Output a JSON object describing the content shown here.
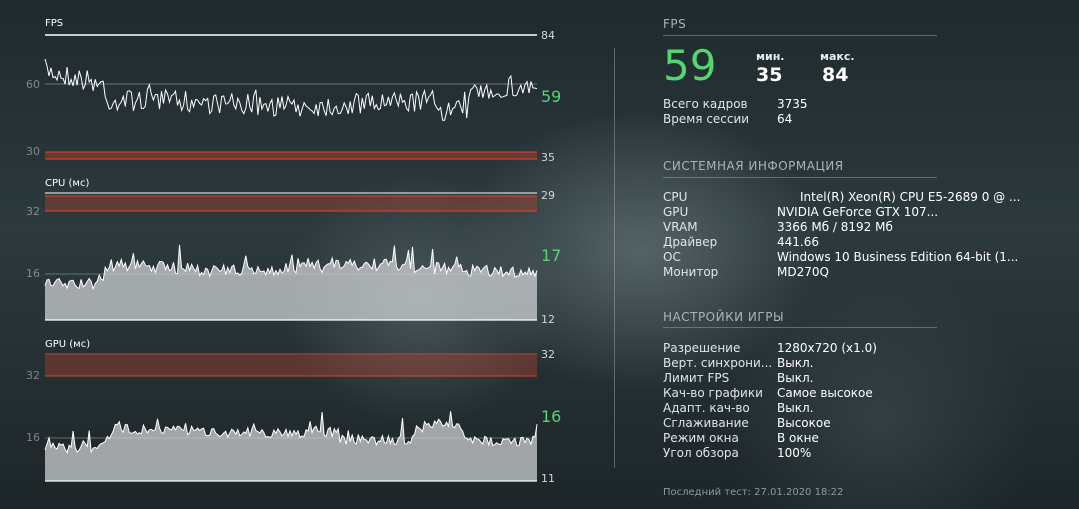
{
  "graphs": {
    "fps": {
      "title": "FPS",
      "top_value": "84",
      "current": "59",
      "bottom_value": "35",
      "left_labels": [
        "60",
        "30"
      ]
    },
    "cpu": {
      "title": "CPU (мс)",
      "top_value": "29",
      "current": "17",
      "bottom_value": "12",
      "left_labels": [
        "32",
        "16"
      ]
    },
    "gpu": {
      "title": "GPU (мс)",
      "top_value": "32",
      "current": "16",
      "bottom_value": "11",
      "left_labels": [
        "32",
        "16"
      ]
    }
  },
  "fps_panel": {
    "title": "FPS",
    "current": "59",
    "min_label": "мин.",
    "min_value": "35",
    "max_label": "макс.",
    "max_value": "84",
    "rows": [
      {
        "label": "Всего кадров",
        "value": "3735"
      },
      {
        "label": "Время сессии",
        "value": "64"
      }
    ]
  },
  "system_info": {
    "title": "СИСТЕМНАЯ ИНФОРМАЦИЯ",
    "rows": [
      {
        "label": "CPU",
        "value": "Intel(R) Xeon(R) CPU E5-2689 0 @ ..."
      },
      {
        "label": "GPU",
        "value": "NVIDIA GeForce GTX 107..."
      },
      {
        "label": "VRAM",
        "value": "3366 Мб / 8192 Мб"
      },
      {
        "label": "Драйвер",
        "value": "441.66"
      },
      {
        "label": "ОС",
        "value": "Windows 10 Business Edition 64-bit (1..."
      },
      {
        "label": "Монитор",
        "value": "MD270Q"
      }
    ]
  },
  "game_settings": {
    "title": "НАСТРОЙКИ ИГРЫ",
    "rows": [
      {
        "label": "Разрешение",
        "value": "1280x720 (x1.0)"
      },
      {
        "label": "Верт. синхрони...",
        "value": "Выкл."
      },
      {
        "label": "Лимит FPS",
        "value": "Выкл."
      },
      {
        "label": "Кач-во графики",
        "value": "Самое высокое"
      },
      {
        "label": "Адапт. кач-во",
        "value": "Выкл."
      },
      {
        "label": "Сглаживание",
        "value": "Высокое"
      },
      {
        "label": "Режим окна",
        "value": "В окне"
      },
      {
        "label": "Угол обзора",
        "value": "100%"
      }
    ]
  },
  "footer": "Последний тест: 27.01.2020 18:22",
  "colors": {
    "accent_green": "#54d66e",
    "threshold_red": "#e0452b",
    "line_white": "#ffffff"
  }
}
